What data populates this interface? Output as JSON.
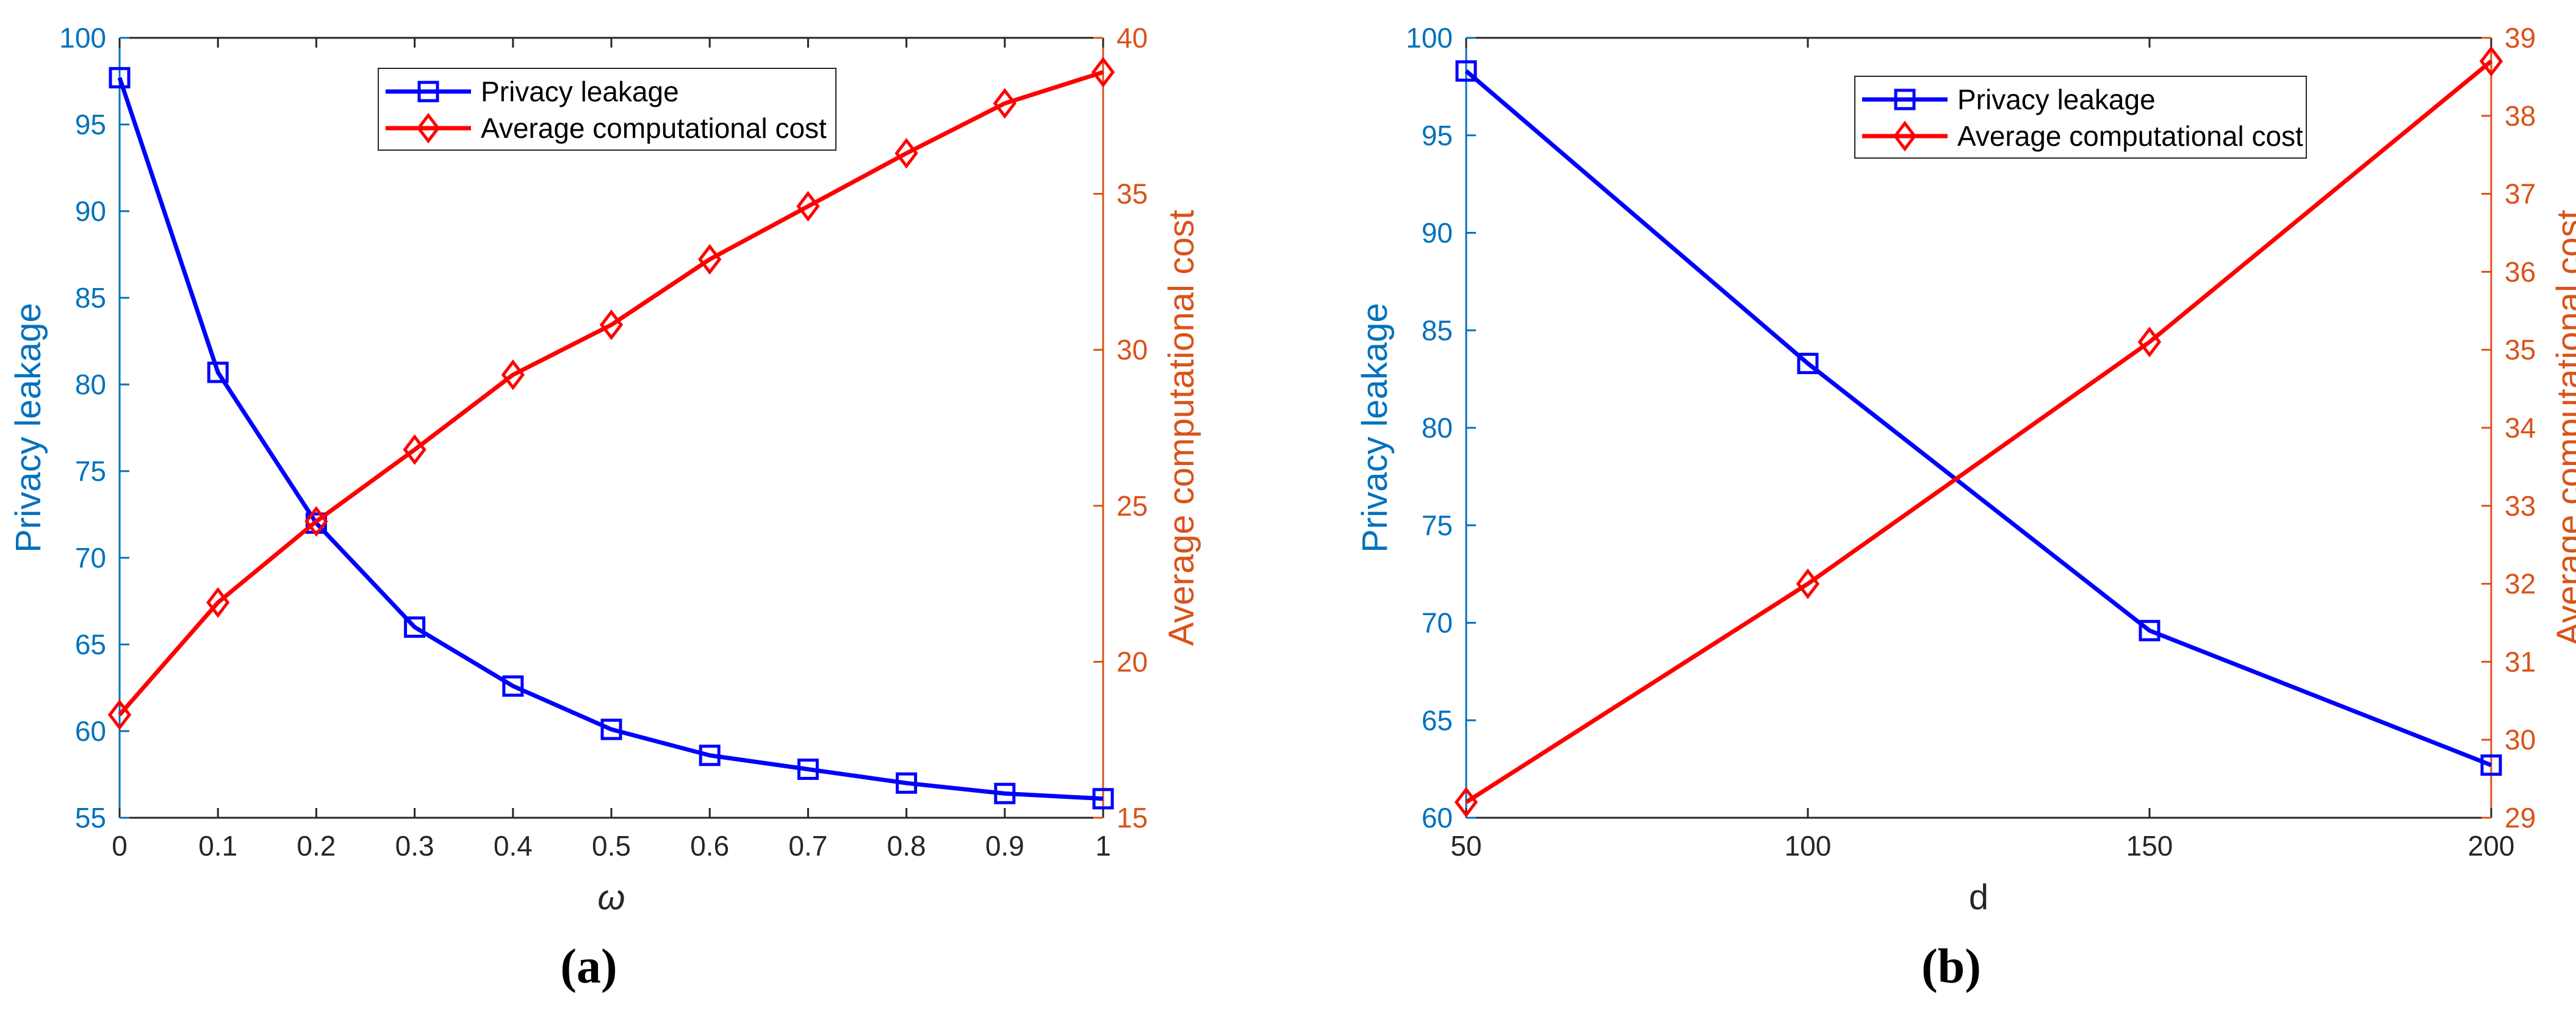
{
  "colors": {
    "left_axis": "#0072BD",
    "right_axis": "#D95319",
    "series_blue": "#0000FF",
    "series_red": "#FF0000",
    "axis_black": "#262626"
  },
  "chart_data": [
    {
      "type": "line",
      "caption": "(a)",
      "xlabel": "ω",
      "ylabel_left": "Privacy leakage",
      "ylabel_right": "Average computational cost",
      "xlim": [
        0,
        1
      ],
      "ylim_left": [
        55,
        100
      ],
      "ylim_right": [
        15,
        40
      ],
      "xticks": [
        "0",
        "0.1",
        "0.2",
        "0.3",
        "0.4",
        "0.5",
        "0.6",
        "0.7",
        "0.8",
        "0.9",
        "1"
      ],
      "yticks_left": [
        "55",
        "60",
        "65",
        "70",
        "75",
        "80",
        "85",
        "90",
        "95",
        "100"
      ],
      "yticks_right": [
        "15",
        "20",
        "25",
        "30",
        "35",
        "40"
      ],
      "legend_position": "top-center",
      "grid": false,
      "series": [
        {
          "name": "Privacy leakage",
          "axis": "left",
          "marker": "square",
          "x": [
            0,
            0.1,
            0.2,
            0.3,
            0.4,
            0.5,
            0.6,
            0.7,
            0.8,
            0.9,
            1.0
          ],
          "y": [
            97.7,
            80.7,
            72.0,
            66.0,
            62.6,
            60.1,
            58.6,
            57.8,
            57.0,
            56.4,
            56.1
          ]
        },
        {
          "name": "Average computational cost",
          "axis": "right",
          "marker": "diamond",
          "x": [
            0,
            0.1,
            0.2,
            0.3,
            0.4,
            0.5,
            0.6,
            0.7,
            0.8,
            0.9,
            1.0
          ],
          "y": [
            18.3,
            21.9,
            24.5,
            26.8,
            29.2,
            30.8,
            32.9,
            34.6,
            36.3,
            37.9,
            38.9
          ]
        }
      ]
    },
    {
      "type": "line",
      "caption": "(b)",
      "xlabel": "d",
      "ylabel_left": "Privacy leakage",
      "ylabel_right": "Average computational cost",
      "xlim": [
        50,
        200
      ],
      "ylim_left": [
        60,
        100
      ],
      "ylim_right": [
        29,
        39
      ],
      "xticks": [
        "50",
        "100",
        "150",
        "200"
      ],
      "yticks_left": [
        "60",
        "65",
        "70",
        "75",
        "80",
        "85",
        "90",
        "95",
        "100"
      ],
      "yticks_right": [
        "29",
        "30",
        "31",
        "32",
        "33",
        "34",
        "35",
        "36",
        "37",
        "38",
        "39"
      ],
      "legend_position": "top-center",
      "grid": false,
      "series": [
        {
          "name": "Privacy leakage",
          "axis": "left",
          "marker": "square",
          "x": [
            50,
            100,
            150,
            200
          ],
          "y": [
            98.3,
            83.3,
            69.6,
            62.7
          ]
        },
        {
          "name": "Average computational cost",
          "axis": "right",
          "marker": "diamond",
          "x": [
            50,
            100,
            150,
            200
          ],
          "y": [
            29.2,
            32.0,
            35.1,
            38.7
          ]
        }
      ]
    }
  ]
}
